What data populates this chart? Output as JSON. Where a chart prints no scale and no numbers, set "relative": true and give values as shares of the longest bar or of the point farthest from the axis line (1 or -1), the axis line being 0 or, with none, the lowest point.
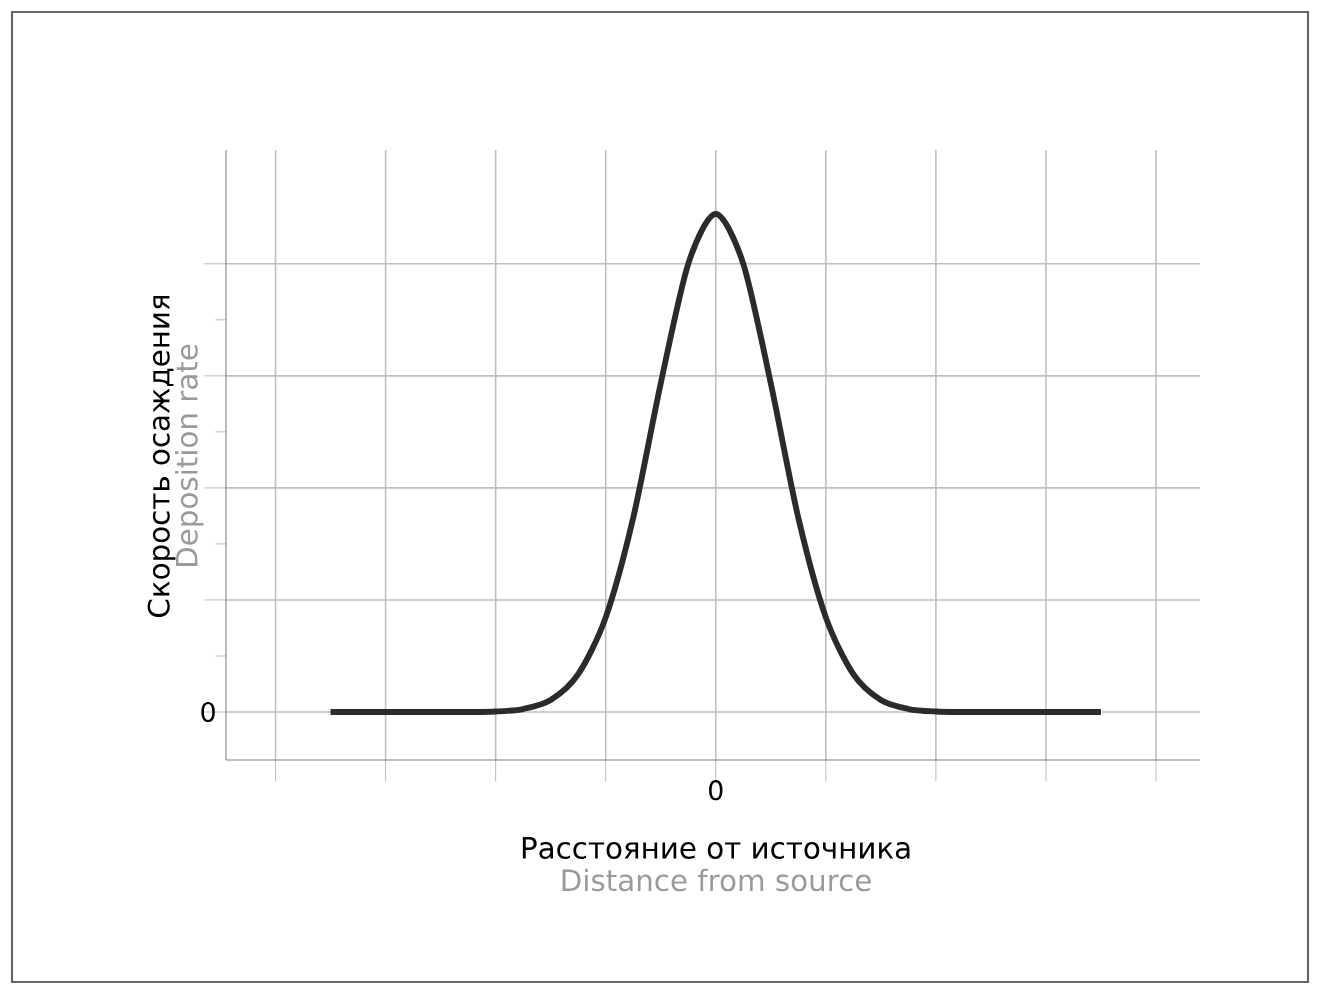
{
  "chart_data": {
    "type": "line",
    "relative": true,
    "ylabel": "Скорость осаждения",
    "xlabel": "Расстояние от источника",
    "annotations": [
      "Deposition rate",
      "Distance from source",
      "0",
      "0"
    ],
    "categories": [
      null,
      null,
      null,
      null,
      null,
      null,
      null,
      null,
      null,
      null,
      null,
      null,
      null,
      null,
      null,
      null,
      null,
      null,
      null,
      null,
      null,
      null,
      null,
      null,
      null,
      null,
      null,
      null,
      null
    ],
    "series": [
      {
        "color": "#2b2b2b",
        "values": [
          0,
          0,
          0,
          0,
          0,
          0,
          0.001,
          0.006,
          0.024,
          0.076,
          0.19,
          0.39,
          0.66,
          0.9,
          1,
          0.9,
          0.66,
          0.39,
          0.19,
          0.076,
          0.024,
          0.006,
          0.001,
          0,
          0,
          0,
          0,
          0,
          0
        ]
      }
    ],
    "grid": true,
    "marker": "none",
    "line_style": "solid"
  }
}
